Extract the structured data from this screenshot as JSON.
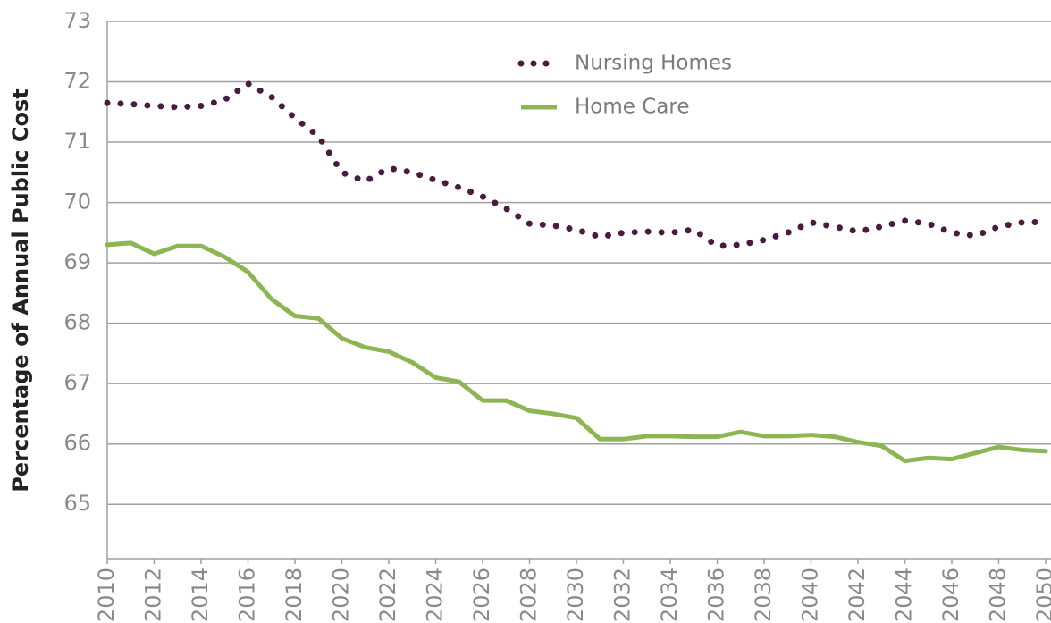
{
  "chart_data": {
    "type": "line",
    "y_label": "Percentage of Annual Public Cost",
    "x": [
      2010,
      2011,
      2012,
      2013,
      2014,
      2015,
      2016,
      2017,
      2018,
      2019,
      2020,
      2021,
      2022,
      2023,
      2024,
      2025,
      2026,
      2027,
      2028,
      2029,
      2030,
      2031,
      2032,
      2033,
      2034,
      2035,
      2036,
      2037,
      2038,
      2039,
      2040,
      2041,
      2042,
      2043,
      2044,
      2045,
      2046,
      2047,
      2048,
      2049,
      2050
    ],
    "series": [
      {
        "name": "Nursing Homes",
        "color": "#4b1a3e",
        "style": "dotted",
        "values": [
          71.65,
          71.63,
          71.6,
          71.58,
          71.6,
          71.7,
          71.97,
          71.75,
          71.4,
          71.1,
          70.5,
          70.35,
          70.57,
          70.5,
          70.37,
          70.25,
          70.1,
          69.9,
          69.65,
          69.62,
          69.55,
          69.43,
          69.5,
          69.52,
          69.5,
          69.55,
          69.28,
          69.3,
          69.38,
          69.5,
          69.67,
          69.6,
          69.52,
          69.6,
          69.7,
          69.65,
          69.5,
          69.45,
          69.6,
          69.67,
          69.68
        ]
      },
      {
        "name": "Home Care",
        "color": "#8db554",
        "style": "solid",
        "values": [
          69.3,
          69.33,
          69.15,
          69.28,
          69.28,
          69.1,
          68.85,
          68.4,
          68.12,
          68.08,
          67.75,
          67.6,
          67.53,
          67.35,
          67.1,
          67.03,
          66.72,
          66.72,
          66.55,
          66.5,
          66.43,
          66.08,
          66.08,
          66.13,
          66.13,
          66.12,
          66.12,
          66.2,
          66.13,
          66.13,
          66.15,
          66.12,
          66.03,
          65.97,
          65.72,
          65.77,
          65.75,
          65.85,
          65.95,
          65.9,
          65.88
        ]
      }
    ],
    "xlim": [
      2010,
      2050
    ],
    "xticks": [
      2010,
      2012,
      2014,
      2016,
      2018,
      2020,
      2022,
      2024,
      2026,
      2028,
      2030,
      2032,
      2034,
      2036,
      2038,
      2040,
      2042,
      2044,
      2046,
      2048,
      2050
    ],
    "ylim": [
      64.1,
      73
    ],
    "yticks": [
      65,
      66,
      67,
      68,
      69,
      70,
      71,
      72,
      73
    ],
    "grid": true
  }
}
